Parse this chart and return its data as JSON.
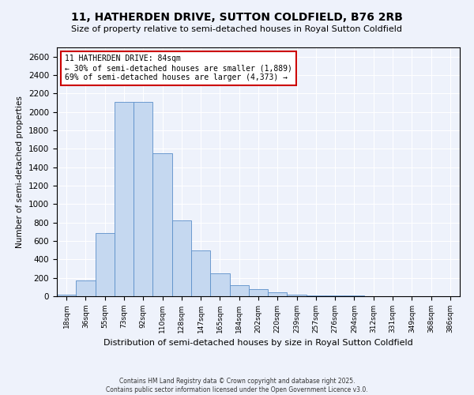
{
  "title": "11, HATHERDEN DRIVE, SUTTON COLDFIELD, B76 2RB",
  "subtitle": "Size of property relative to semi-detached houses in Royal Sutton Coldfield",
  "xlabel": "Distribution of semi-detached houses by size in Royal Sutton Coldfield",
  "ylabel": "Number of semi-detached properties",
  "categories": [
    "18sqm",
    "36sqm",
    "55sqm",
    "73sqm",
    "92sqm",
    "110sqm",
    "128sqm",
    "147sqm",
    "165sqm",
    "184sqm",
    "202sqm",
    "220sqm",
    "239sqm",
    "257sqm",
    "276sqm",
    "294sqm",
    "312sqm",
    "331sqm",
    "349sqm",
    "368sqm",
    "386sqm"
  ],
  "bar_values": [
    15,
    175,
    690,
    2110,
    2110,
    1550,
    820,
    500,
    250,
    120,
    75,
    40,
    20,
    10,
    5,
    5,
    2,
    2,
    1,
    1,
    1
  ],
  "bar_color": "#c5d8f0",
  "bar_edge_color": "#5b8fc9",
  "annotation_title": "11 HATHERDEN DRIVE: 84sqm",
  "annotation_line1": "← 30% of semi-detached houses are smaller (1,889)",
  "annotation_line2": "69% of semi-detached houses are larger (4,373) →",
  "annotation_box_color": "#cc0000",
  "ylim": [
    0,
    2700
  ],
  "yticks": [
    0,
    200,
    400,
    600,
    800,
    1000,
    1200,
    1400,
    1600,
    1800,
    2000,
    2200,
    2400,
    2600
  ],
  "footer1": "Contains HM Land Registry data © Crown copyright and database right 2025.",
  "footer2": "Contains public sector information licensed under the Open Government Licence v3.0.",
  "bg_color": "#eef2fb",
  "plot_bg_color": "#eef2fb"
}
